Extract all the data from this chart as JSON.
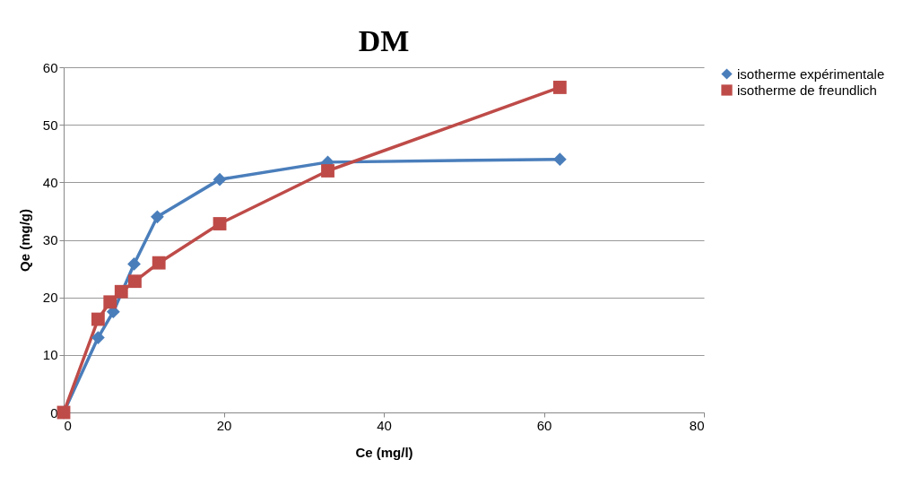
{
  "chart_data": {
    "type": "line",
    "title": "DM",
    "xlabel": "Ce (mg/l)",
    "ylabel": "Qe (mg/g)",
    "xlim": [
      0,
      80
    ],
    "xticks": [
      0,
      20,
      40,
      60,
      80
    ],
    "ylim": [
      0,
      60
    ],
    "yticks": [
      0,
      10,
      20,
      30,
      40,
      50,
      60
    ],
    "grid": "y",
    "legend": "right",
    "line_style": "solid",
    "series": [
      {
        "name": "isotherme expérimentale",
        "color": "#4a7ebb",
        "marker": "diamond",
        "x": [
          0,
          4.3,
          6.2,
          8.8,
          11.7,
          19.5,
          33,
          62
        ],
        "values": [
          0,
          13,
          17.5,
          25.8,
          34,
          40.5,
          43.5,
          44
        ]
      },
      {
        "name": "isotherme de freundlich",
        "color": "#be4b48",
        "marker": "square",
        "x": [
          0,
          4.3,
          5.8,
          7.2,
          8.9,
          11.9,
          19.5,
          33,
          62
        ],
        "values": [
          0,
          16.2,
          19.2,
          21,
          22.8,
          26,
          32.8,
          42,
          56.5
        ]
      }
    ]
  }
}
